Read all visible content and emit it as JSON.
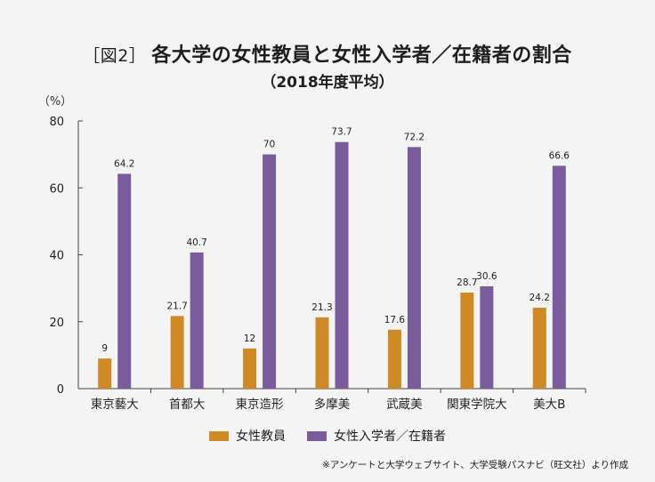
{
  "chart_data": {
    "type": "bar",
    "title_prefix": "［図2］",
    "title": "各大学の女性教員と女性入学者／在籍者の割合",
    "subtitle": "（2018年度平均）",
    "ylabel": "（%）",
    "xlabel": "",
    "ylim": [
      0,
      80
    ],
    "yticks": [
      0,
      20,
      40,
      60,
      80
    ],
    "categories": [
      "東京藝大",
      "首都大",
      "東京造形",
      "多摩美",
      "武蔵美",
      "関東学院大",
      "美大B"
    ],
    "series": [
      {
        "name": "女性教員",
        "values": [
          9,
          21.7,
          12,
          21.3,
          17.6,
          28.7,
          24.2
        ],
        "labels": [
          "9",
          "21.7",
          "12",
          "21.3",
          "17.6",
          "28.7",
          "24.2"
        ],
        "color": "#cf8a26"
      },
      {
        "name": "女性入学者／在籍者",
        "values": [
          64.2,
          40.7,
          70,
          73.7,
          72.2,
          30.6,
          66.6
        ],
        "labels": [
          "64.2",
          "40.7",
          "70",
          "73.7",
          "72.2",
          "30.6",
          "66.6"
        ],
        "color": "#7a5c9c"
      }
    ],
    "grid": false,
    "legend_position": "bottom"
  },
  "source_note": "※アンケートと大学ウェブサイト、大学受験パスナビ（旺文社）より作成"
}
